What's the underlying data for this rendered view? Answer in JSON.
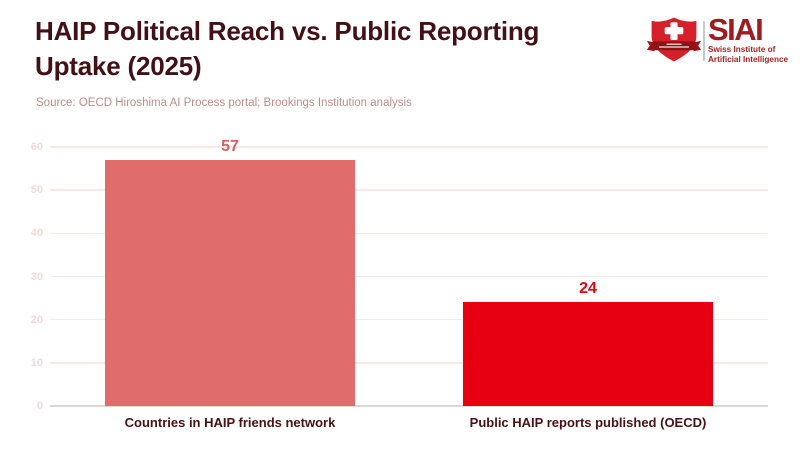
{
  "header": {
    "title_line1": "HAIP Political Reach vs. Public Reporting",
    "title_line2": "Uptake (2025)",
    "source": "Source: OECD Hiroshima AI Process portal; Brookings Institution analysis"
  },
  "logo": {
    "name": "SIAI",
    "subtitle_line1": "Swiss Institute of",
    "subtitle_line2": "Artificial Intelligence",
    "shield_color": "#d5202a",
    "banner_color": "#8f1217",
    "text_color": "#9e1b20"
  },
  "chart_data": {
    "type": "bar",
    "title": "HAIP Political Reach vs. Public Reporting Uptake (2025)",
    "categories": [
      "Countries in HAIP friends network",
      "Public HAIP reports published (OECD)"
    ],
    "values": [
      57,
      24
    ],
    "bar_colors": [
      "#e06c6c",
      "#e60011"
    ],
    "value_label_colors": [
      "#d75f5f",
      "#e60011"
    ],
    "ylim": [
      0,
      60
    ],
    "yticks": [
      0,
      10,
      20,
      30,
      40,
      50,
      60
    ],
    "grid": true,
    "legend": "none",
    "xlabel": "",
    "ylabel": ""
  },
  "colors": {
    "title": "#431015",
    "source_text": "#bf8c8c",
    "category_label": "#4a1014",
    "tick_label": "#f3dada",
    "gridline": "#fae8e3",
    "axis_line": "#d8d8d8"
  }
}
